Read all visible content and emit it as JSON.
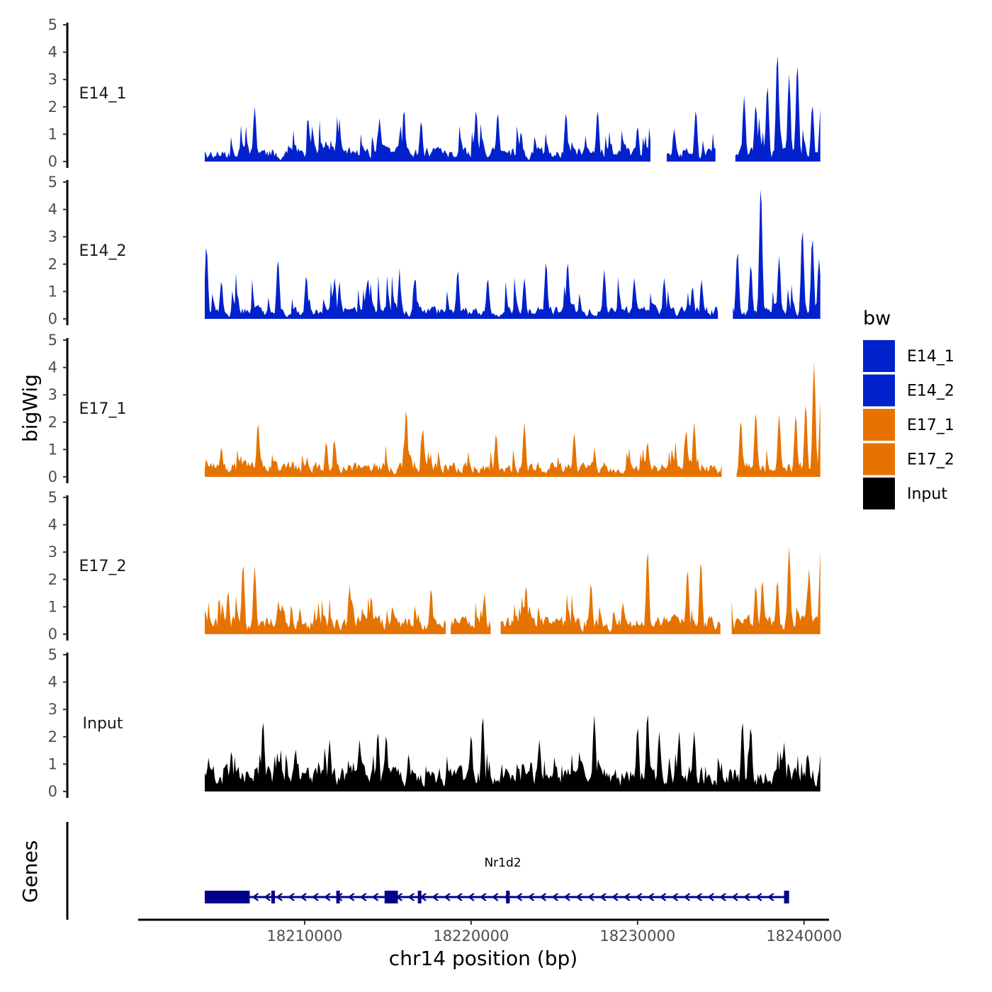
{
  "chart_data": {
    "type": "area",
    "y_axis_title": "bigWig",
    "x_axis_title": "chr14 position (bp)",
    "genes_track_title": "Genes",
    "ylim": [
      0,
      5
    ],
    "y_ticks": [
      "0",
      "1",
      "2",
      "3",
      "4",
      "5"
    ],
    "xlim": [
      18200000,
      18241500
    ],
    "x_ticks": [
      {
        "value": 18210000,
        "label": "18210000"
      },
      {
        "value": 18220000,
        "label": "18220000"
      },
      {
        "value": 18230000,
        "label": "18230000"
      },
      {
        "value": 18240000,
        "label": "18240000"
      }
    ],
    "data_range": [
      18204000,
      18241000
    ],
    "legend": {
      "title": "bw",
      "items": [
        {
          "label": "E14_1",
          "color": "#0021CC"
        },
        {
          "label": "E14_2",
          "color": "#0021CC"
        },
        {
          "label": "E17_1",
          "color": "#E67300"
        },
        {
          "label": "E17_2",
          "color": "#E67300"
        },
        {
          "label": "Input",
          "color": "#000000"
        }
      ]
    },
    "series": [
      {
        "name": "E14_1",
        "color": "#0021CC",
        "seed": 11,
        "base": 0.55,
        "amp": 1.4,
        "gaps": [
          [
            18230800,
            18231700
          ],
          [
            18234700,
            18235800
          ]
        ],
        "peaks": [
          {
            "x": 18207000,
            "y": 2.0
          },
          {
            "x": 18210500,
            "y": 1.0
          },
          {
            "x": 18212000,
            "y": 1.1
          },
          {
            "x": 18214500,
            "y": 1.6
          },
          {
            "x": 18217000,
            "y": 1.5
          },
          {
            "x": 18220300,
            "y": 1.9
          },
          {
            "x": 18221600,
            "y": 1.8
          },
          {
            "x": 18223000,
            "y": 1.1
          },
          {
            "x": 18225700,
            "y": 1.8
          },
          {
            "x": 18227600,
            "y": 1.9
          },
          {
            "x": 18230000,
            "y": 1.3
          },
          {
            "x": 18232200,
            "y": 1.2
          },
          {
            "x": 18233500,
            "y": 1.9
          },
          {
            "x": 18236400,
            "y": 2.4
          },
          {
            "x": 18237100,
            "y": 2.1
          },
          {
            "x": 18237800,
            "y": 2.8
          },
          {
            "x": 18238400,
            "y": 4.0
          },
          {
            "x": 18239100,
            "y": 3.2
          },
          {
            "x": 18239600,
            "y": 3.6
          },
          {
            "x": 18240500,
            "y": 2.1
          },
          {
            "x": 18241000,
            "y": 2.0
          }
        ]
      },
      {
        "name": "E14_2",
        "color": "#0021CC",
        "seed": 23,
        "base": 0.5,
        "amp": 1.5,
        "gaps": [
          [
            18234900,
            18235700
          ]
        ],
        "peaks": [
          {
            "x": 18204100,
            "y": 2.7
          },
          {
            "x": 18205000,
            "y": 1.4
          },
          {
            "x": 18208400,
            "y": 2.2
          },
          {
            "x": 18210100,
            "y": 1.6
          },
          {
            "x": 18211800,
            "y": 1.5
          },
          {
            "x": 18213800,
            "y": 1.5
          },
          {
            "x": 18216600,
            "y": 1.4
          },
          {
            "x": 18219200,
            "y": 1.8
          },
          {
            "x": 18221000,
            "y": 1.5
          },
          {
            "x": 18223200,
            "y": 1.5
          },
          {
            "x": 18224500,
            "y": 2.1
          },
          {
            "x": 18225800,
            "y": 2.1
          },
          {
            "x": 18228000,
            "y": 1.8
          },
          {
            "x": 18229800,
            "y": 1.5
          },
          {
            "x": 18231600,
            "y": 1.5
          },
          {
            "x": 18233300,
            "y": 1.2
          },
          {
            "x": 18236000,
            "y": 2.5
          },
          {
            "x": 18236800,
            "y": 2.0
          },
          {
            "x": 18237400,
            "y": 4.9
          },
          {
            "x": 18238500,
            "y": 2.3
          },
          {
            "x": 18239900,
            "y": 3.3
          },
          {
            "x": 18240500,
            "y": 3.0
          },
          {
            "x": 18240900,
            "y": 2.2
          }
        ]
      },
      {
        "name": "E17_1",
        "color": "#E67300",
        "seed": 37,
        "base": 0.6,
        "amp": 1.1,
        "gaps": [
          [
            18235100,
            18235900
          ]
        ],
        "peaks": [
          {
            "x": 18205000,
            "y": 1.1
          },
          {
            "x": 18207200,
            "y": 2.0
          },
          {
            "x": 18211300,
            "y": 1.3
          },
          {
            "x": 18216100,
            "y": 2.5
          },
          {
            "x": 18217100,
            "y": 1.8
          },
          {
            "x": 18221500,
            "y": 1.6
          },
          {
            "x": 18223200,
            "y": 2.0
          },
          {
            "x": 18226200,
            "y": 1.6
          },
          {
            "x": 18230600,
            "y": 1.3
          },
          {
            "x": 18233400,
            "y": 2.0
          },
          {
            "x": 18236200,
            "y": 2.1
          },
          {
            "x": 18237100,
            "y": 2.4
          },
          {
            "x": 18238500,
            "y": 2.3
          },
          {
            "x": 18239500,
            "y": 2.3
          },
          {
            "x": 18240100,
            "y": 2.7
          },
          {
            "x": 18240600,
            "y": 4.2
          },
          {
            "x": 18241000,
            "y": 2.9
          }
        ]
      },
      {
        "name": "E17_2",
        "color": "#E67300",
        "seed": 53,
        "base": 0.7,
        "amp": 1.3,
        "gaps": [
          [
            18218500,
            18218700
          ],
          [
            18221200,
            18221700
          ],
          [
            18235000,
            18235600
          ]
        ],
        "peaks": [
          {
            "x": 18205400,
            "y": 1.6
          },
          {
            "x": 18206300,
            "y": 2.6
          },
          {
            "x": 18207000,
            "y": 2.5
          },
          {
            "x": 18212700,
            "y": 1.8
          },
          {
            "x": 18214000,
            "y": 1.4
          },
          {
            "x": 18217600,
            "y": 1.7
          },
          {
            "x": 18220800,
            "y": 1.5
          },
          {
            "x": 18223300,
            "y": 1.8
          },
          {
            "x": 18227200,
            "y": 1.9
          },
          {
            "x": 18230600,
            "y": 3.1
          },
          {
            "x": 18233000,
            "y": 2.4
          },
          {
            "x": 18233800,
            "y": 2.7
          },
          {
            "x": 18235600,
            "y": 1.4
          },
          {
            "x": 18237100,
            "y": 1.8
          },
          {
            "x": 18237500,
            "y": 2.0
          },
          {
            "x": 18238400,
            "y": 2.0
          },
          {
            "x": 18239100,
            "y": 3.2
          },
          {
            "x": 18240300,
            "y": 2.4
          },
          {
            "x": 18241000,
            "y": 3.2
          }
        ]
      },
      {
        "name": "Input",
        "color": "#000000",
        "seed": 71,
        "base": 0.95,
        "amp": 1.0,
        "gaps": [],
        "peaks": [
          {
            "x": 18205600,
            "y": 1.5
          },
          {
            "x": 18207500,
            "y": 2.6
          },
          {
            "x": 18211500,
            "y": 1.9
          },
          {
            "x": 18213300,
            "y": 1.9
          },
          {
            "x": 18214400,
            "y": 2.2
          },
          {
            "x": 18214900,
            "y": 2.1
          },
          {
            "x": 18220000,
            "y": 2.1
          },
          {
            "x": 18220700,
            "y": 2.8
          },
          {
            "x": 18224100,
            "y": 1.9
          },
          {
            "x": 18227400,
            "y": 2.8
          },
          {
            "x": 18230000,
            "y": 2.4
          },
          {
            "x": 18230600,
            "y": 2.9
          },
          {
            "x": 18231300,
            "y": 2.2
          },
          {
            "x": 18232500,
            "y": 2.2
          },
          {
            "x": 18233400,
            "y": 2.2
          },
          {
            "x": 18236300,
            "y": 2.6
          },
          {
            "x": 18236800,
            "y": 2.4
          },
          {
            "x": 18238800,
            "y": 1.8
          },
          {
            "x": 18240200,
            "y": 1.4
          },
          {
            "x": 18241000,
            "y": 1.4
          }
        ]
      }
    ],
    "gene": {
      "name": "Nr1d2",
      "start": 18204000,
      "end": 18239000,
      "strand": "-",
      "color": "#00008B",
      "exons": [
        {
          "start": 18204000,
          "end": 18206700
        },
        {
          "start": 18208000,
          "end": 18208200
        },
        {
          "start": 18211900,
          "end": 18212000
        },
        {
          "start": 18214800,
          "end": 18215600
        },
        {
          "start": 18216800,
          "end": 18216900
        },
        {
          "start": 18222100,
          "end": 18222300
        },
        {
          "start": 18238800,
          "end": 18239100
        }
      ]
    }
  }
}
